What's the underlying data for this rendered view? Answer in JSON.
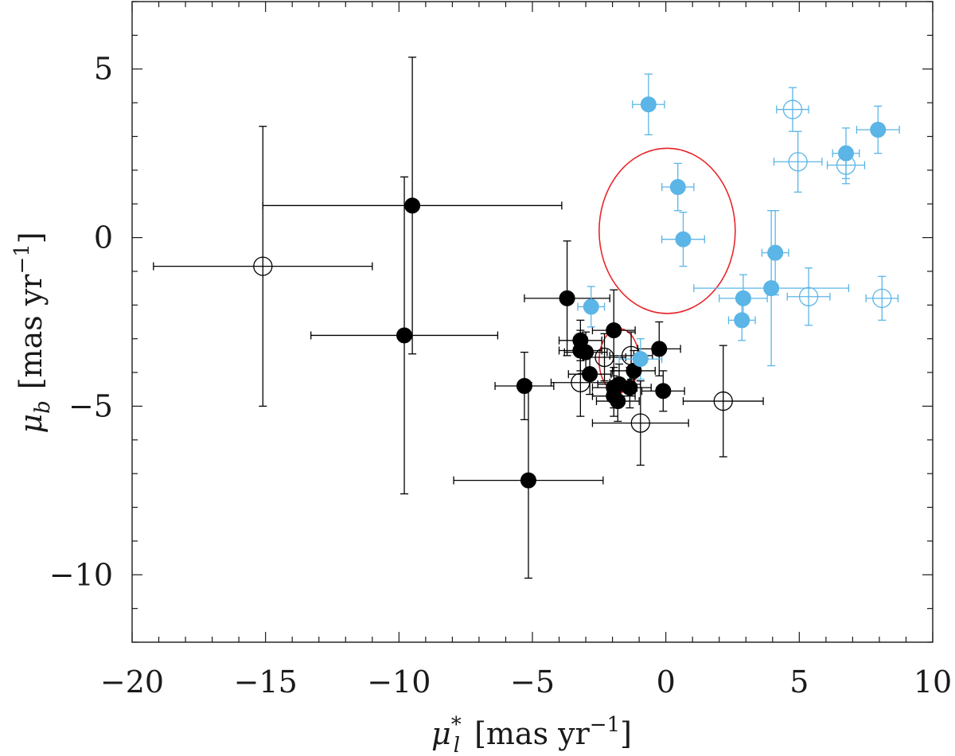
{
  "chart_data": {
    "type": "scatter",
    "title": "",
    "xlabel": {
      "symbol": "μ",
      "sub": "l",
      "sup": "*",
      "unit": "[mas yr",
      "unit_exp": "−1",
      "unit_close": "]"
    },
    "ylabel": {
      "symbol": "μ",
      "sub": "b",
      "unit": "[mas yr",
      "unit_exp": "−1",
      "unit_close": "]"
    },
    "xlim": [
      -20,
      10
    ],
    "ylim": [
      -12,
      7
    ],
    "xticks": [
      -20,
      -15,
      -10,
      -5,
      0,
      5,
      10
    ],
    "xtick_labels": [
      "−20",
      "−15",
      "−10",
      "−5",
      "0",
      "5",
      "10"
    ],
    "yticks": [
      -10,
      -5,
      0,
      5
    ],
    "ytick_labels": [
      "−10",
      "−5",
      "0",
      "5"
    ],
    "colors": {
      "black": "#000000",
      "blue": "#5bb5e6",
      "red": "#e8262a"
    },
    "series": [
      {
        "name": "black filled",
        "color": "black",
        "filled": true,
        "points": [
          {
            "x": -9.5,
            "y": 0.95,
            "xerr": 5.6,
            "yerr": 4.4
          },
          {
            "x": -9.8,
            "y": -2.9,
            "xerr": 3.5,
            "yerr": 4.7
          },
          {
            "x": -3.7,
            "y": -1.8,
            "xerr": 1.6,
            "yerr": 1.7
          },
          {
            "x": -5.3,
            "y": -4.4,
            "xerr": 1.1,
            "yerr": 1.0
          },
          {
            "x": -5.15,
            "y": -7.2,
            "xerr": 2.8,
            "yerr": 2.9
          },
          {
            "x": -3.2,
            "y": -3.05,
            "xerr": 0.8,
            "yerr": 0.6
          },
          {
            "x": -3.2,
            "y": -3.35,
            "xerr": 0.8,
            "yerr": 0.6
          },
          {
            "x": -3.0,
            "y": -3.4,
            "xerr": 0.8,
            "yerr": 0.6
          },
          {
            "x": -2.85,
            "y": -4.05,
            "xerr": 0.8,
            "yerr": 0.6
          },
          {
            "x": -1.95,
            "y": -2.75,
            "xerr": 0.8,
            "yerr": 1.2
          },
          {
            "x": -1.75,
            "y": -4.35,
            "xerr": 0.8,
            "yerr": 0.6
          },
          {
            "x": -1.95,
            "y": -4.45,
            "xerr": 0.8,
            "yerr": 0.6
          },
          {
            "x": -1.95,
            "y": -4.7,
            "xerr": 0.8,
            "yerr": 0.6
          },
          {
            "x": -1.8,
            "y": -4.85,
            "xerr": 0.8,
            "yerr": 0.6
          },
          {
            "x": -1.35,
            "y": -4.45,
            "xerr": 0.8,
            "yerr": 0.6
          },
          {
            "x": -1.2,
            "y": -3.95,
            "xerr": 0.8,
            "yerr": 0.6
          },
          {
            "x": -0.25,
            "y": -3.3,
            "xerr": 0.8,
            "yerr": 0.8
          },
          {
            "x": -0.1,
            "y": -4.55,
            "xerr": 0.8,
            "yerr": 0.6
          }
        ]
      },
      {
        "name": "black open",
        "color": "black",
        "filled": false,
        "points": [
          {
            "x": -15.1,
            "y": -0.85,
            "xerr": 4.1,
            "yerr": 4.15
          },
          {
            "x": -3.2,
            "y": -4.3,
            "xerr": 1.1,
            "yerr": 1.0
          },
          {
            "x": -2.3,
            "y": -3.55,
            "xerr": 0.8,
            "yerr": 0.7
          },
          {
            "x": -1.3,
            "y": -3.5,
            "xerr": 0.8,
            "yerr": 0.7
          },
          {
            "x": -0.95,
            "y": -5.5,
            "xerr": 1.8,
            "yerr": 1.25
          },
          {
            "x": 2.15,
            "y": -4.85,
            "xerr": 1.5,
            "yerr": 1.65
          }
        ]
      },
      {
        "name": "blue filled",
        "color": "blue",
        "filled": true,
        "points": [
          {
            "x": -0.65,
            "y": 3.95,
            "xerr": 0.6,
            "yerr": 0.9
          },
          {
            "x": 0.45,
            "y": 1.5,
            "xerr": 0.6,
            "yerr": 0.7
          },
          {
            "x": 0.65,
            "y": -0.05,
            "xerr": 0.8,
            "yerr": 0.8
          },
          {
            "x": -2.8,
            "y": -2.05,
            "xerr": 0.5,
            "yerr": 0.6
          },
          {
            "x": -0.95,
            "y": -3.6,
            "xerr": 0.8,
            "yerr": 0.6
          },
          {
            "x": 2.9,
            "y": -1.8,
            "xerr": 0.9,
            "yerr": 0.7
          },
          {
            "x": 2.85,
            "y": -2.45,
            "xerr": 0.5,
            "yerr": 0.6
          },
          {
            "x": 3.95,
            "y": -1.5,
            "xerr": 2.9,
            "yerr": 2.3
          },
          {
            "x": 4.1,
            "y": -0.45,
            "xerr": 0.5,
            "yerr": 1.25
          },
          {
            "x": 6.75,
            "y": 2.5,
            "xerr": 0.5,
            "yerr": 0.75
          },
          {
            "x": 7.95,
            "y": 3.2,
            "xerr": 0.8,
            "yerr": 0.7
          }
        ]
      },
      {
        "name": "blue open",
        "color": "blue",
        "filled": false,
        "points": [
          {
            "x": 4.75,
            "y": 3.8,
            "xerr": 0.6,
            "yerr": 0.65
          },
          {
            "x": 4.95,
            "y": 2.25,
            "xerr": 0.9,
            "yerr": 0.9
          },
          {
            "x": 6.75,
            "y": 2.15,
            "xerr": 0.7,
            "yerr": 0.55
          },
          {
            "x": 5.35,
            "y": -1.75,
            "xerr": 0.8,
            "yerr": 0.85
          },
          {
            "x": 8.1,
            "y": -1.8,
            "xerr": 0.6,
            "yerr": 0.65
          }
        ]
      }
    ],
    "ellipses": [
      {
        "name": "large ellipse",
        "color": "red",
        "cx": 0.05,
        "cy": 0.2,
        "rx": 2.55,
        "ry": 2.45
      },
      {
        "name": "small ellipse",
        "color": "red",
        "cx": -1.75,
        "cy": -3.65,
        "rx": 0.75,
        "ry": 0.95
      }
    ]
  }
}
